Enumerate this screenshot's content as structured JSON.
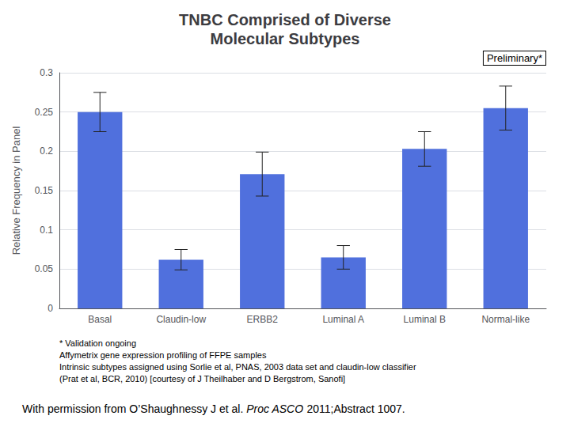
{
  "chart_data": {
    "type": "bar",
    "title": "TNBC Comprised of Diverse\nMolecular Subtypes",
    "categories": [
      "Basal",
      "Claudin-low",
      "ERBB2",
      "Luminal A",
      "Luminal B",
      "Normal-like"
    ],
    "values": [
      0.25,
      0.062,
      0.171,
      0.065,
      0.203,
      0.255
    ],
    "errors": [
      0.025,
      0.013,
      0.028,
      0.015,
      0.022,
      0.028
    ],
    "ylabel": "Relative Frequency in Panel",
    "ylim": [
      0,
      0.3
    ],
    "yticks": [
      0,
      0.05,
      0.1,
      0.15,
      0.2,
      0.25,
      0.3
    ],
    "grid": true,
    "annotations": [
      "Preliminary*"
    ],
    "footnotes": [
      "* Validation ongoing",
      "Affymetrix gene expression profiling of FFPE samples",
      "Intrinsic subtypes assigned using Sorlie et al, PNAS, 2003 data set and claudin-low classifier",
      "(Prat et al, BCR, 2010) [courtesy of J Theilhaber and D Bergstrom, Sanofi]"
    ],
    "source": [
      "With permission from O’Shaughnessy J et al. ",
      "Proc ASCO",
      " 2011;Abstract 1007."
    ]
  }
}
